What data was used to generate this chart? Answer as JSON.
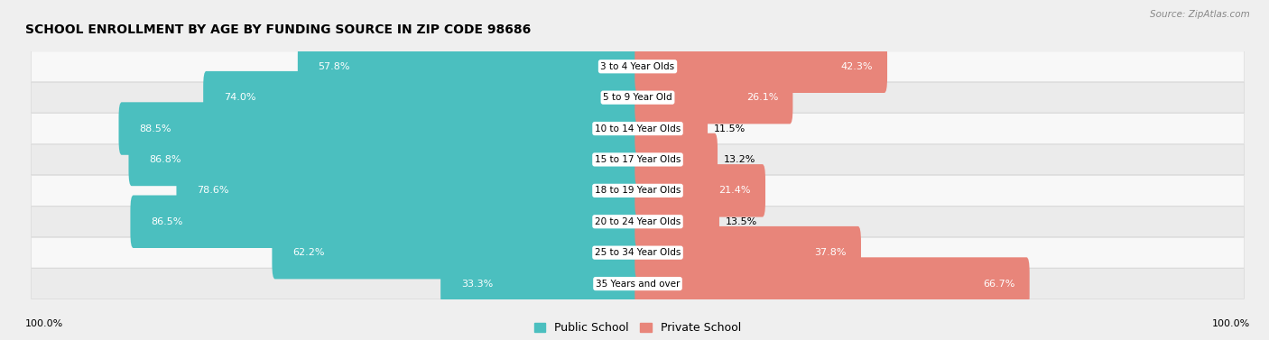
{
  "title": "SCHOOL ENROLLMENT BY AGE BY FUNDING SOURCE IN ZIP CODE 98686",
  "source": "Source: ZipAtlas.com",
  "categories": [
    "3 to 4 Year Olds",
    "5 to 9 Year Old",
    "10 to 14 Year Olds",
    "15 to 17 Year Olds",
    "18 to 19 Year Olds",
    "20 to 24 Year Olds",
    "25 to 34 Year Olds",
    "35 Years and over"
  ],
  "public_values": [
    57.8,
    74.0,
    88.5,
    86.8,
    78.6,
    86.5,
    62.2,
    33.3
  ],
  "private_values": [
    42.3,
    26.1,
    11.5,
    13.2,
    21.4,
    13.5,
    37.8,
    66.7
  ],
  "public_color": "#4BBFBF",
  "private_color": "#E8857A",
  "bg_color": "#EFEFEF",
  "row_bg_light": "#F8F8F8",
  "row_bg_dark": "#EBEBEB",
  "title_fontsize": 10,
  "bar_label_fontsize": 8,
  "category_fontsize": 7.5,
  "axis_label_fontsize": 8,
  "legend_fontsize": 9
}
